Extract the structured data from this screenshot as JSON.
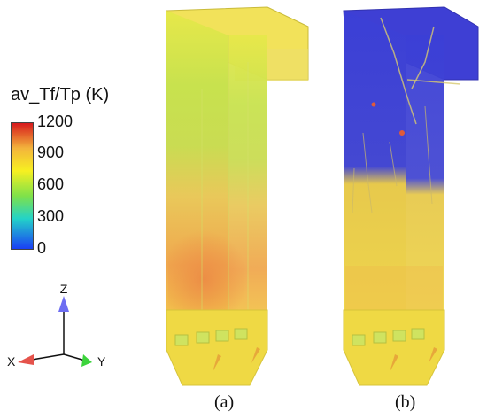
{
  "legend": {
    "title": "av_Tf/Tp (K)",
    "ticks": [
      "1200",
      "900",
      "600",
      "300",
      "0"
    ],
    "colors": [
      "#d7191c",
      "#f3b43c",
      "#f7f021",
      "#7ee14a",
      "#23d3c8",
      "#1a3ff5"
    ]
  },
  "axes": {
    "z": "Z",
    "x": "X",
    "y": "Y"
  },
  "panels": [
    {
      "caption": "(a)"
    },
    {
      "caption": "(b)"
    }
  ]
}
